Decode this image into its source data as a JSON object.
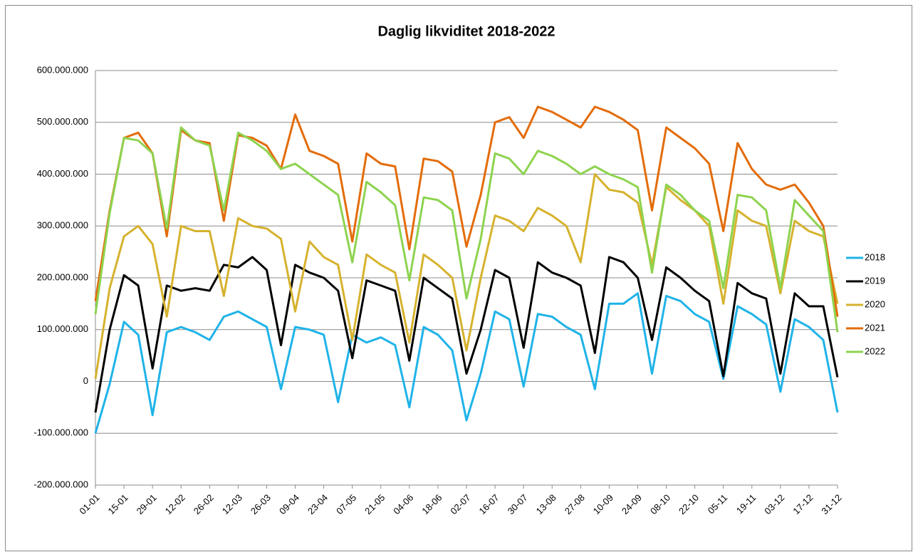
{
  "chart_data": {
    "type": "line",
    "title": "Daglig likviditet 2018-2022",
    "categories": [
      "01-01",
      null,
      "15-01",
      null,
      "29-01",
      null,
      "12-02",
      null,
      "26-02",
      null,
      "12-03",
      null,
      "26-03",
      null,
      "09-04",
      null,
      "23-04",
      null,
      "07-05",
      null,
      "21-05",
      null,
      "04-06",
      null,
      "18-06",
      null,
      "02-07",
      null,
      "16-07",
      null,
      "30-07",
      null,
      "13-08",
      null,
      "27-08",
      null,
      "10-09",
      null,
      "24-09",
      null,
      "08-10",
      null,
      "22-10",
      null,
      "05-11",
      null,
      "19-11",
      null,
      "03-12",
      null,
      "17-12",
      null,
      "31-12"
    ],
    "series": [
      {
        "name": "2018",
        "color": "#1fb3e8",
        "values": [
          -100000000,
          -5000000,
          115000000,
          90000000,
          -65000000,
          95000000,
          105000000,
          95000000,
          80000000,
          125000000,
          135000000,
          120000000,
          105000000,
          -15000000,
          105000000,
          100000000,
          90000000,
          -40000000,
          90000000,
          75000000,
          85000000,
          70000000,
          -50000000,
          105000000,
          90000000,
          60000000,
          -75000000,
          15000000,
          135000000,
          120000000,
          -10000000,
          130000000,
          125000000,
          105000000,
          90000000,
          -15000000,
          150000000,
          150000000,
          170000000,
          15000000,
          165000000,
          155000000,
          130000000,
          115000000,
          5000000,
          145000000,
          130000000,
          110000000,
          -20000000,
          120000000,
          105000000,
          80000000,
          -60000000
        ]
      },
      {
        "name": "2019",
        "color": "#000000",
        "values": [
          -60000000,
          100000000,
          205000000,
          185000000,
          25000000,
          185000000,
          175000000,
          180000000,
          175000000,
          225000000,
          220000000,
          240000000,
          215000000,
          70000000,
          225000000,
          210000000,
          200000000,
          175000000,
          45000000,
          195000000,
          185000000,
          175000000,
          40000000,
          200000000,
          180000000,
          160000000,
          15000000,
          100000000,
          215000000,
          200000000,
          65000000,
          230000000,
          210000000,
          200000000,
          185000000,
          55000000,
          240000000,
          230000000,
          200000000,
          80000000,
          220000000,
          200000000,
          175000000,
          155000000,
          10000000,
          190000000,
          170000000,
          160000000,
          15000000,
          170000000,
          145000000,
          145000000,
          8000000
        ]
      },
      {
        "name": "2020",
        "color": "#d6b22e",
        "values": [
          5000000,
          180000000,
          280000000,
          300000000,
          265000000,
          125000000,
          300000000,
          290000000,
          290000000,
          165000000,
          315000000,
          300000000,
          295000000,
          275000000,
          135000000,
          270000000,
          240000000,
          225000000,
          80000000,
          245000000,
          225000000,
          210000000,
          75000000,
          245000000,
          225000000,
          200000000,
          60000000,
          200000000,
          320000000,
          310000000,
          290000000,
          335000000,
          320000000,
          300000000,
          230000000,
          400000000,
          370000000,
          365000000,
          345000000,
          225000000,
          375000000,
          350000000,
          330000000,
          300000000,
          150000000,
          330000000,
          310000000,
          300000000,
          170000000,
          310000000,
          290000000,
          280000000,
          150000000
        ]
      },
      {
        "name": "2021",
        "color": "#e36c0a",
        "values": [
          155000000,
          330000000,
          470000000,
          480000000,
          440000000,
          280000000,
          485000000,
          465000000,
          460000000,
          310000000,
          475000000,
          470000000,
          455000000,
          410000000,
          515000000,
          445000000,
          435000000,
          420000000,
          270000000,
          440000000,
          420000000,
          415000000,
          255000000,
          430000000,
          425000000,
          405000000,
          260000000,
          360000000,
          500000000,
          510000000,
          470000000,
          530000000,
          520000000,
          505000000,
          490000000,
          530000000,
          520000000,
          505000000,
          485000000,
          330000000,
          490000000,
          470000000,
          450000000,
          420000000,
          290000000,
          460000000,
          410000000,
          380000000,
          370000000,
          380000000,
          345000000,
          300000000,
          125000000
        ]
      },
      {
        "name": "2022",
        "color": "#8ed34f",
        "values": [
          130000000,
          325000000,
          470000000,
          465000000,
          440000000,
          295000000,
          490000000,
          465000000,
          455000000,
          330000000,
          480000000,
          465000000,
          445000000,
          410000000,
          420000000,
          400000000,
          380000000,
          360000000,
          230000000,
          385000000,
          365000000,
          340000000,
          195000000,
          355000000,
          350000000,
          330000000,
          160000000,
          275000000,
          440000000,
          430000000,
          400000000,
          445000000,
          435000000,
          420000000,
          400000000,
          415000000,
          400000000,
          390000000,
          375000000,
          210000000,
          380000000,
          360000000,
          330000000,
          310000000,
          180000000,
          360000000,
          355000000,
          330000000,
          180000000,
          350000000,
          320000000,
          290000000,
          95000000
        ]
      }
    ],
    "ylim": [
      -200000000,
      600000000
    ],
    "yticks": [
      {
        "value": -200000000,
        "label": "-200.000.000"
      },
      {
        "value": -100000000,
        "label": "-100.000.000"
      },
      0,
      {
        "value": 100000000,
        "label": "100.000.000"
      },
      {
        "value": 200000000,
        "label": "200.000.000"
      },
      {
        "value": 300000000,
        "label": "300.000.000"
      },
      {
        "value": 400000000,
        "label": "400.000.000"
      },
      {
        "value": 500000000,
        "label": "500.000.000"
      },
      {
        "value": 600000000,
        "label": "600.000.000"
      }
    ],
    "grid": true,
    "legend": "right"
  }
}
